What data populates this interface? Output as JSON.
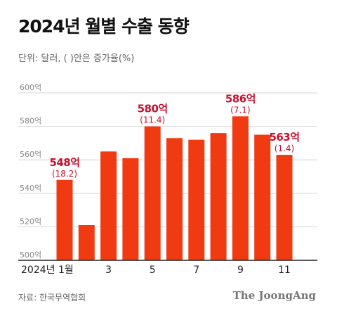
{
  "title": "2024년 월별 수출 동향",
  "unit_note": "단위: 달러, (  )안은 증가율(%)",
  "source": "자료: 한국무역협회",
  "brand": "The JoongAng",
  "colors": {
    "bar": "#f03a12",
    "highlight": "#c8102e",
    "grid": "#d4d4d4",
    "tick": "#888888",
    "axis": "#222222"
  },
  "chart_data": {
    "type": "bar",
    "categories": [
      "2024년 1월",
      "2",
      "3",
      "4",
      "5",
      "6",
      "7",
      "8",
      "9",
      "10",
      "11"
    ],
    "x_tick_labels": [
      "2024년 1월",
      "",
      "3",
      "",
      "5",
      "",
      "7",
      "",
      "9",
      "",
      "11"
    ],
    "values": [
      548,
      521,
      565,
      561,
      580,
      573,
      572,
      576,
      586,
      575,
      563
    ],
    "ylim": [
      500,
      600
    ],
    "y_ticks": [
      600,
      580,
      560,
      540,
      520,
      500
    ],
    "y_tick_suffix": "억",
    "grid": true,
    "annotations": [
      {
        "index": 0,
        "value_label": "548억",
        "growth_label": "(18.2)"
      },
      {
        "index": 4,
        "value_label": "580억",
        "growth_label": "(11.4)"
      },
      {
        "index": 8,
        "value_label": "586억",
        "growth_label": "(7.1)"
      },
      {
        "index": 10,
        "value_label": "563억",
        "growth_label": "(1.4)"
      }
    ]
  }
}
